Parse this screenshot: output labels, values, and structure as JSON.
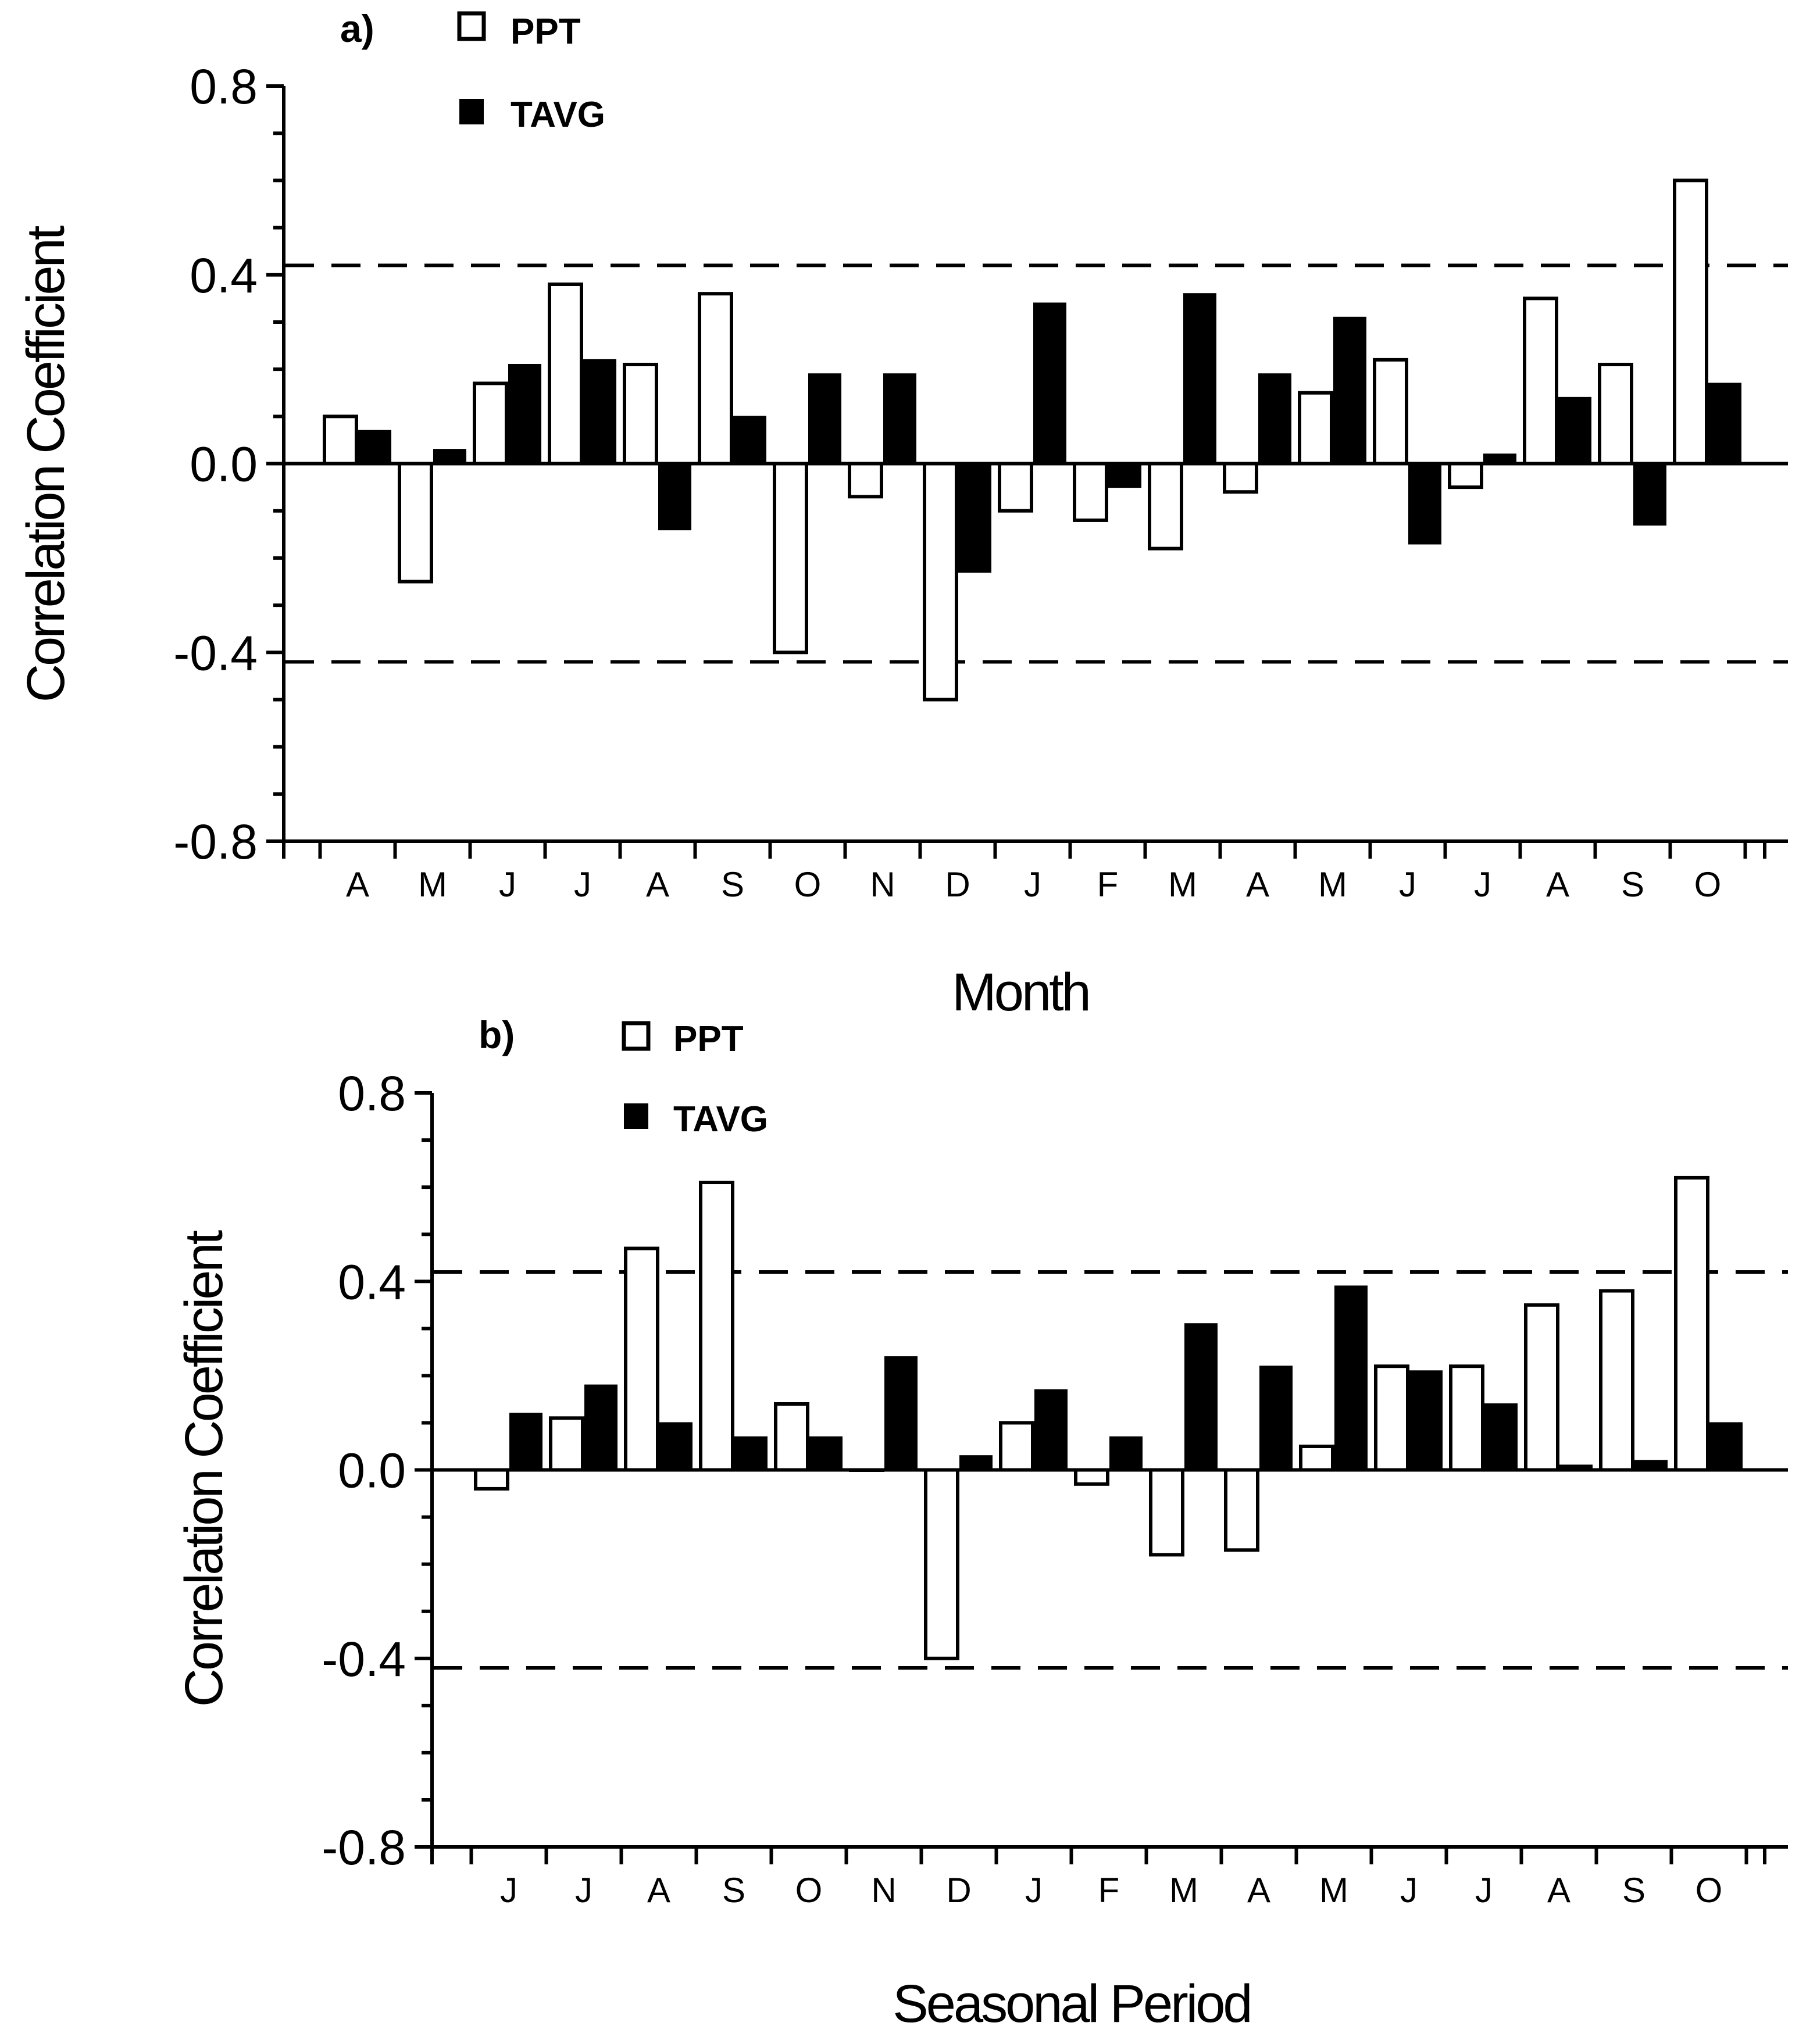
{
  "chart_data": [
    {
      "type": "bar",
      "panel_label": "a)",
      "categories": [
        "A",
        "M",
        "J",
        "J",
        "A",
        "S",
        "O",
        "N",
        "D",
        "J",
        "F",
        "M",
        "A",
        "M",
        "J",
        "J",
        "A",
        "S",
        "O"
      ],
      "series": [
        {
          "name": "PPT",
          "fill": "#ffffff",
          "values": [
            0.1,
            -0.25,
            0.17,
            0.38,
            0.21,
            0.36,
            -0.4,
            -0.07,
            -0.5,
            -0.1,
            -0.12,
            -0.18,
            -0.06,
            0.15,
            0.22,
            -0.05,
            0.35,
            0.21,
            0.6
          ]
        },
        {
          "name": "TAVG",
          "fill": "#000000",
          "values": [
            0.07,
            0.03,
            0.21,
            0.22,
            -0.14,
            0.1,
            0.19,
            0.19,
            -0.23,
            0.34,
            -0.05,
            0.36,
            0.19,
            0.31,
            -0.17,
            0.02,
            0.14,
            -0.13,
            0.17
          ]
        }
      ],
      "reference_lines": [
        0.42,
        -0.42
      ],
      "yticks": [
        "0.8",
        "0.4",
        "0.0",
        "-0.4",
        "-0.8"
      ],
      "xlabel": "Month",
      "ylabel": "Correlation Coefficient",
      "ylim": [
        -0.8,
        0.8
      ]
    },
    {
      "type": "bar",
      "panel_label": "b)",
      "categories": [
        "J",
        "J",
        "A",
        "S",
        "O",
        "N",
        "D",
        "J",
        "F",
        "M",
        "A",
        "M",
        "J",
        "J",
        "A",
        "S",
        "O"
      ],
      "series": [
        {
          "name": "PPT",
          "fill": "#ffffff",
          "values": [
            -0.04,
            0.11,
            0.47,
            0.61,
            0.14,
            0.0,
            -0.4,
            0.1,
            -0.03,
            -0.18,
            -0.17,
            0.05,
            0.22,
            0.22,
            0.35,
            0.38,
            0.62
          ]
        },
        {
          "name": "TAVG",
          "fill": "#000000",
          "values": [
            0.12,
            0.18,
            0.1,
            0.07,
            0.07,
            0.24,
            0.03,
            0.17,
            0.07,
            0.31,
            0.22,
            0.39,
            0.21,
            0.14,
            0.01,
            0.02,
            0.1
          ]
        }
      ],
      "reference_lines": [
        0.42,
        -0.42
      ],
      "yticks": [
        "0.8",
        "0.4",
        "0.0",
        "-0.4",
        "-0.8"
      ],
      "xlabel": "Seasonal Period",
      "ylabel": "Correlation Coefficient",
      "ylim": [
        -0.8,
        0.8
      ]
    }
  ]
}
